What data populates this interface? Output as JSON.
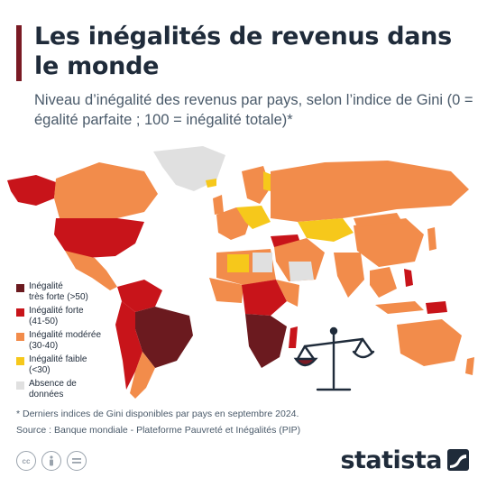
{
  "header": {
    "title": "Les inégalités de revenus dans le monde",
    "subtitle": "Niveau d’inégalité des revenus par pays, selon l’indice de Gini (0 = égalité parfaite ; 100 = inégalité totale)*"
  },
  "legend": {
    "items": [
      {
        "label": "Inégalité\ntrès forte (>50)",
        "color": "#6b1a1f"
      },
      {
        "label": "Inégalité forte\n(41-50)",
        "color": "#c8141a"
      },
      {
        "label": "Inégalité modérée\n(30-40)",
        "color": "#f28c4b"
      },
      {
        "label": "Inégalité faible\n(<30)",
        "color": "#f6c81b"
      },
      {
        "label": "Absence de\ndonnées",
        "color": "#e0e0e0"
      }
    ]
  },
  "footer": {
    "footnote": "* Derniers indices de Gini disponibles par pays en septembre 2024.",
    "source": "Source : Banque mondiale - Plateforme Pauvreté et Inégalités (PIP)"
  },
  "license_icons": [
    "cc-icon",
    "attribution-icon",
    "no-derivatives-icon"
  ],
  "brand": {
    "name": "statista"
  },
  "colors": {
    "very_high": "#6b1a1f",
    "high": "#c8141a",
    "moderate": "#f28c4b",
    "low": "#f6c81b",
    "no_data": "#e0e0e0",
    "title": "#1f2b3a",
    "accent_bar": "#7a1a24"
  }
}
